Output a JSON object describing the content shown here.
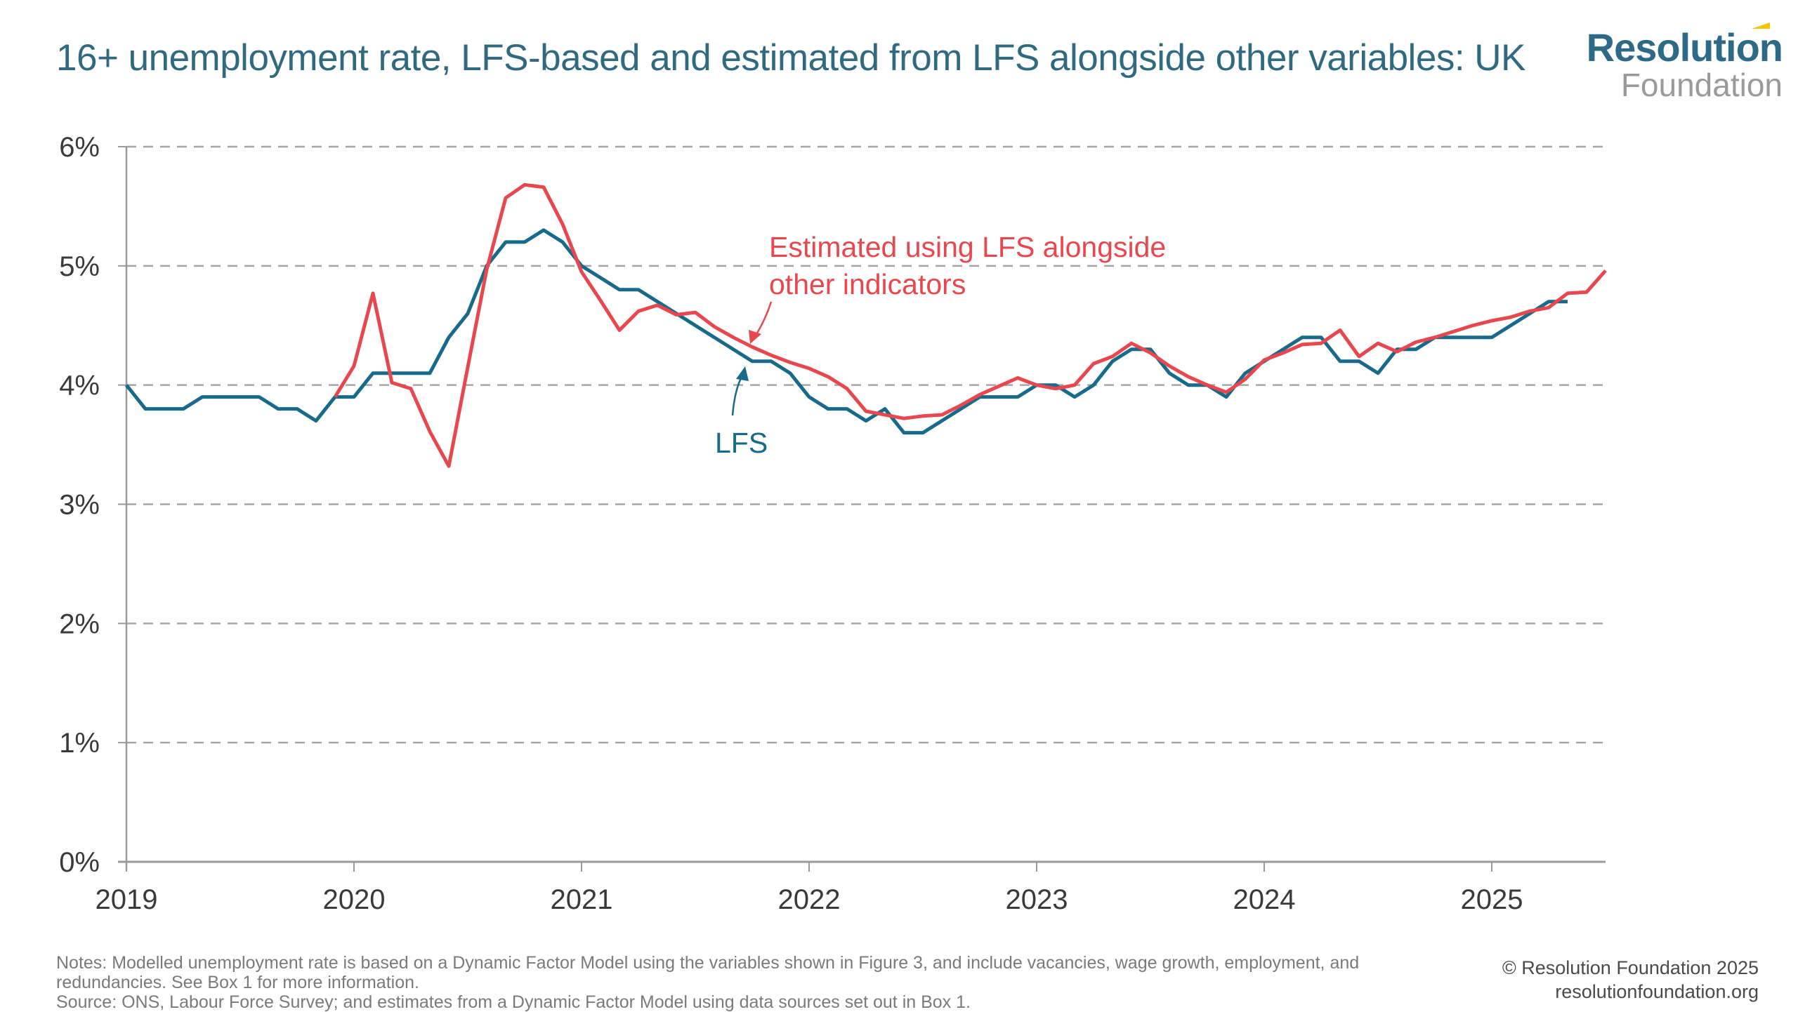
{
  "header": {
    "title": "16+ unemployment rate, LFS-based and estimated from LFS alongside other variables: UK",
    "logo_main": "Resolution",
    "logo_sub": "Foundation"
  },
  "footer": {
    "notes_line1": "Notes: Modelled unemployment rate is based on a Dynamic Factor Model using the variables shown in Figure 3, and include vacancies, wage growth, employment, and",
    "notes_line2": "redundancies.  See Box 1 for more information.",
    "source": "Source: ONS, Labour Force Survey; and estimates from a Dynamic Factor Model using data sources set out in Box 1.",
    "copyright": "© Resolution Foundation 2025",
    "website": "resolutionfoundation.org"
  },
  "colors": {
    "lfs": "#176a8a",
    "estimated": "#e8474d",
    "title": "#2f6a80",
    "grid": "#a6a6a6",
    "axis": "#9a9a9a"
  },
  "chart_data": {
    "type": "line",
    "title": "16+ unemployment rate, LFS-based and estimated from LFS alongside other variables: UK",
    "xlabel": "",
    "ylabel": "",
    "x_start": "2019-01",
    "x_frequency": "monthly",
    "x_range": [
      "2019-01",
      "2025-07"
    ],
    "ylim": [
      0,
      6
    ],
    "y_ticks": [
      0,
      1,
      2,
      3,
      4,
      5,
      6
    ],
    "y_tick_labels": [
      "0%",
      "1%",
      "2%",
      "3%",
      "4%",
      "5%",
      "6%"
    ],
    "x_ticks": [
      "2019",
      "2020",
      "2021",
      "2022",
      "2023",
      "2024",
      "2025"
    ],
    "grid": "horizontal dashed",
    "legend": "inline annotations",
    "series": [
      {
        "name": "LFS",
        "label": "LFS",
        "start": "2019-01",
        "values": [
          4.0,
          3.8,
          3.8,
          3.8,
          3.9,
          3.9,
          3.9,
          3.9,
          3.8,
          3.8,
          3.7,
          3.9,
          3.9,
          4.1,
          4.1,
          4.1,
          4.1,
          4.4,
          4.6,
          5.0,
          5.2,
          5.2,
          5.3,
          5.2,
          5.0,
          4.9,
          4.8,
          4.8,
          4.7,
          4.6,
          4.5,
          4.4,
          4.3,
          4.2,
          4.2,
          4.1,
          3.9,
          3.8,
          3.8,
          3.7,
          3.8,
          3.6,
          3.6,
          3.7,
          3.8,
          3.9,
          3.9,
          3.9,
          4.0,
          4.0,
          3.9,
          4.0,
          4.2,
          4.3,
          4.3,
          4.1,
          4.0,
          4.0,
          3.9,
          4.1,
          4.2,
          4.3,
          4.4,
          4.4,
          4.2,
          4.2,
          4.1,
          4.3,
          4.3,
          4.4,
          4.4,
          4.4,
          4.4,
          4.5,
          4.6,
          4.7,
          4.7
        ]
      },
      {
        "name": "Estimated using LFS alongside other indicators",
        "label_line1": "Estimated using LFS alongside",
        "label_line2": "other indicators",
        "start": "2019-12",
        "values": [
          3.9,
          4.16,
          4.77,
          4.02,
          3.97,
          3.61,
          3.32,
          4.15,
          4.97,
          5.57,
          5.68,
          5.66,
          5.35,
          4.95,
          4.71,
          4.46,
          4.62,
          4.67,
          4.59,
          4.61,
          4.49,
          4.4,
          4.32,
          4.25,
          4.19,
          4.14,
          4.07,
          3.97,
          3.78,
          3.75,
          3.72,
          3.74,
          3.75,
          3.83,
          3.92,
          3.99,
          4.06,
          4.0,
          3.97,
          4.0,
          4.18,
          4.24,
          4.35,
          4.27,
          4.16,
          4.07,
          4.0,
          3.94,
          4.05,
          4.21,
          4.27,
          4.34,
          4.35,
          4.46,
          4.24,
          4.35,
          4.28,
          4.36,
          4.4,
          4.45,
          4.5,
          4.54,
          4.57,
          4.62,
          4.65,
          4.77,
          4.78,
          4.96
        ]
      }
    ]
  }
}
